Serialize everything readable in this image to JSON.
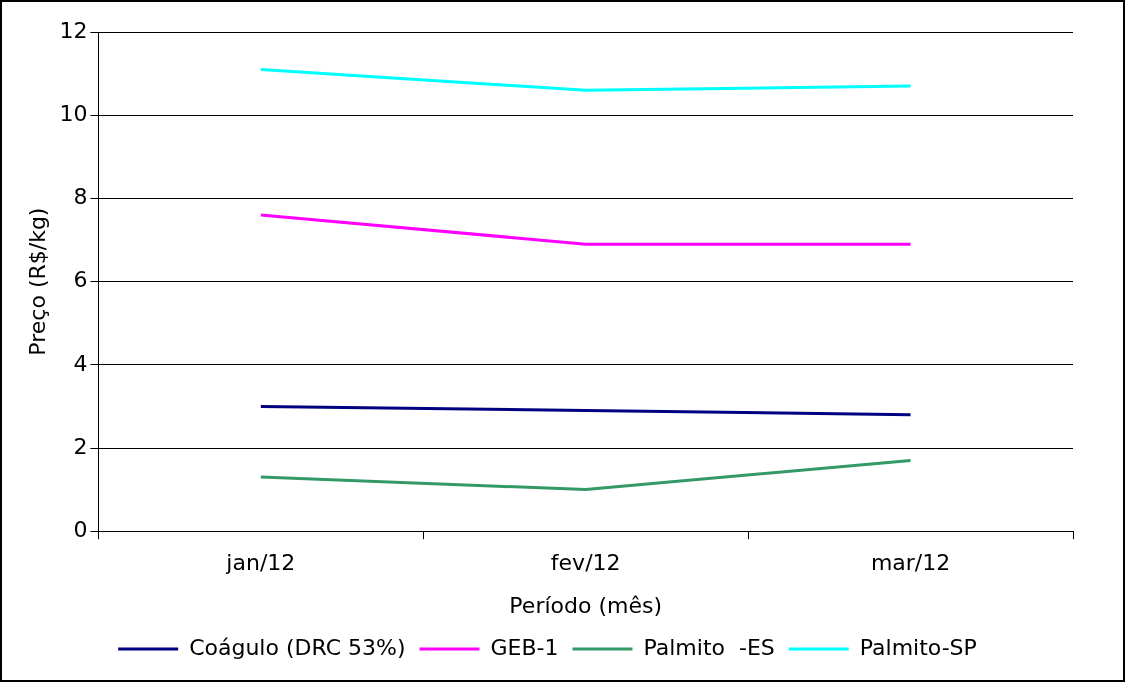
{
  "chart_data": {
    "type": "line",
    "xlabel": "Período (mês)",
    "ylabel": "Preço (R$/kg)",
    "categories": [
      "jan/12",
      "fev/12",
      "mar/12"
    ],
    "series": [
      {
        "name": "Coágulo (DRC 53%)",
        "color": "#000080",
        "values": [
          3.0,
          2.9,
          2.8
        ]
      },
      {
        "name": "GEB-1",
        "color": "#ff00ff",
        "values": [
          7.6,
          6.9,
          6.9
        ]
      },
      {
        "name": "Palmito  -ES",
        "color": "#339966",
        "values": [
          1.3,
          1.0,
          1.7
        ]
      },
      {
        "name": "Palmito-SP",
        "color": "#00ffff",
        "values": [
          11.1,
          10.6,
          10.7
        ]
      }
    ],
    "ylim": [
      0,
      12
    ],
    "yticks": [
      0,
      2,
      4,
      6,
      8,
      10,
      12
    ],
    "grid": "y",
    "legend": "bottom",
    "marker": "none",
    "line_style": "solid"
  }
}
